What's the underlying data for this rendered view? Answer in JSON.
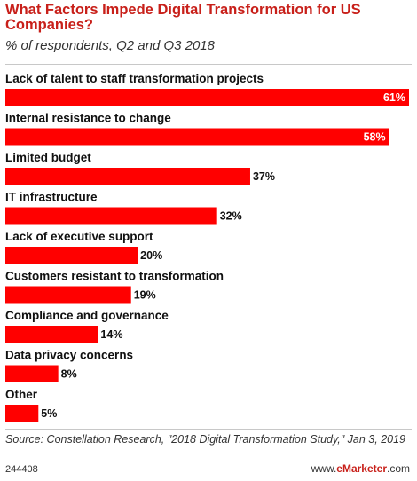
{
  "chart_data": {
    "type": "bar",
    "orientation": "horizontal",
    "title": "What Factors Impede Digital Transformation for US Companies?",
    "subtitle": "% of respondents, Q2 and Q3 2018",
    "categories": [
      "Lack of talent to staff transformation projects",
      "Internal resistance to change",
      "Limited budget",
      "IT infrastructure",
      "Lack of executive support",
      "Customers resistant to transformation",
      "Compliance and governance",
      "Data privacy concerns",
      "Other"
    ],
    "values": [
      61,
      58,
      37,
      32,
      20,
      19,
      14,
      8,
      5
    ],
    "value_labels": [
      "61%",
      "58%",
      "37%",
      "32%",
      "20%",
      "19%",
      "14%",
      "8%",
      "5%"
    ],
    "xlim": [
      0,
      61
    ],
    "grid": false,
    "legend": "none",
    "colors": {
      "bar": "#ff0000",
      "title": "#c8201a",
      "label_inside": "#ffffff",
      "label_outside": "#111111"
    }
  },
  "footer": {
    "source": "Source: Constellation Research, \"2018 Digital Transformation Study,\" Jan 3, 2019",
    "chart_id": "244408",
    "url_prefix": "www.",
    "brand": "eMarketer",
    "url_suffix": ".com"
  }
}
